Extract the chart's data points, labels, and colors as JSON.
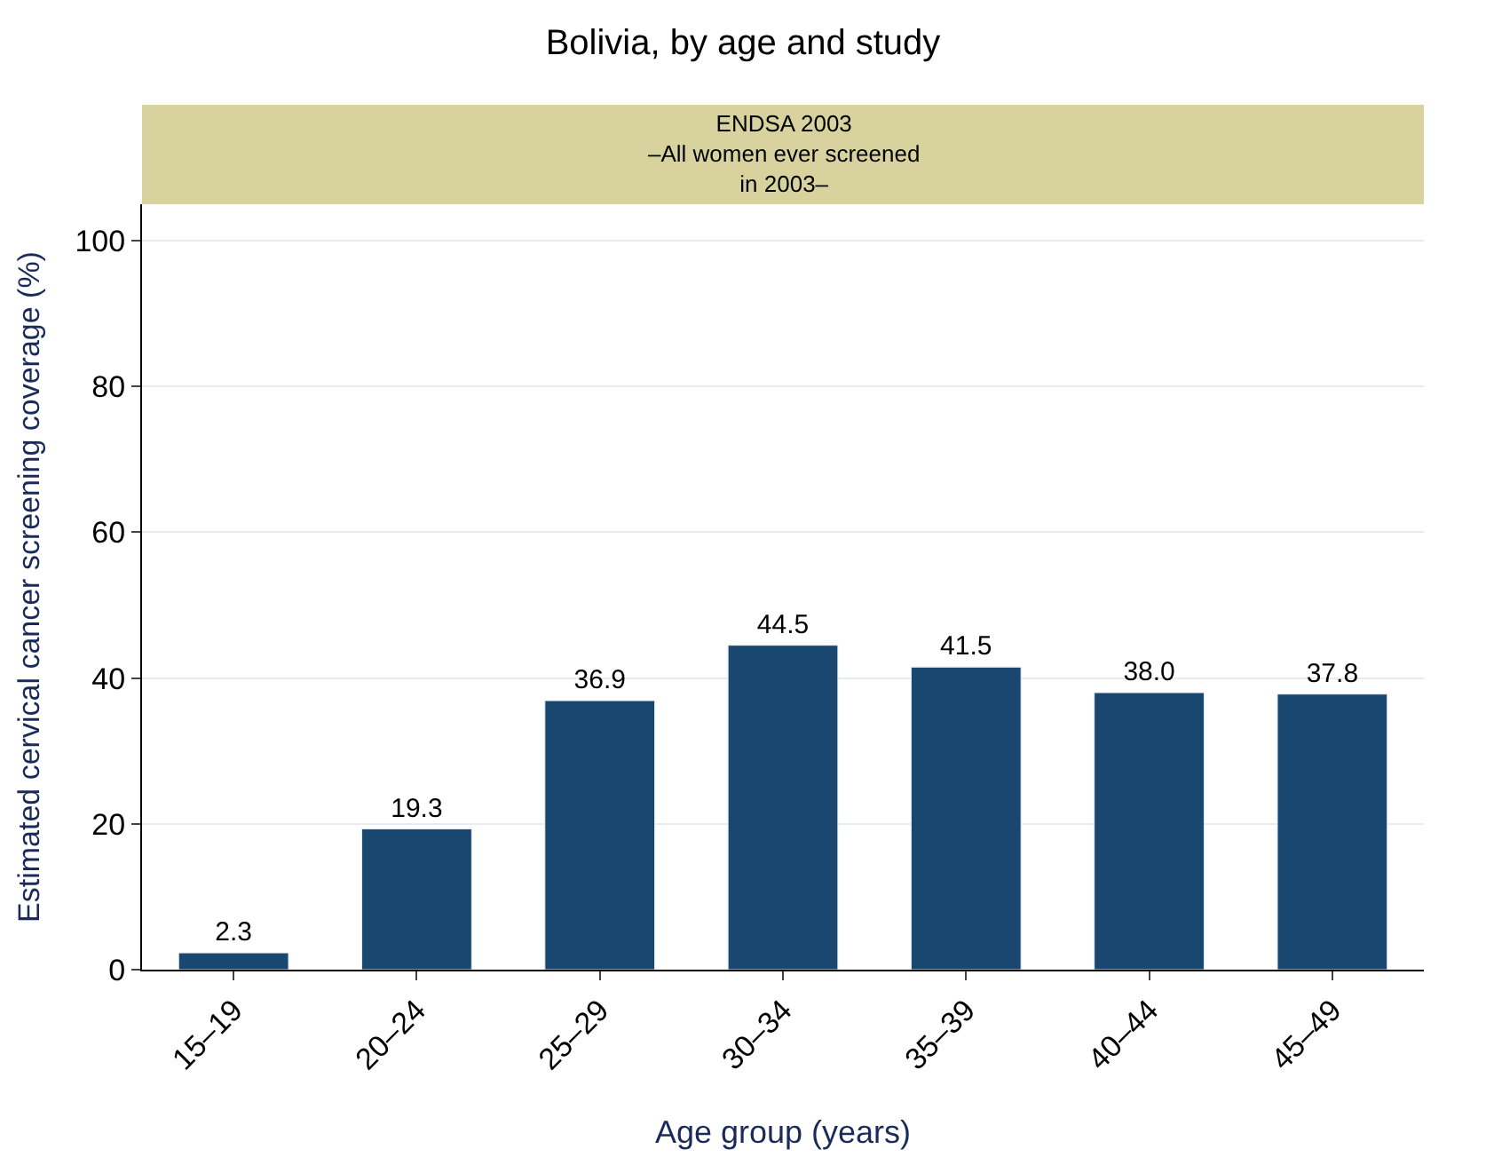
{
  "chart_data": {
    "type": "bar",
    "title": "Bolivia, by age and study",
    "subtitle": "ENDSA 2003\n–All women ever screened\nin 2003–",
    "xlabel": "Age group (years)",
    "ylabel": "Estimated cervical cancer screening coverage (%)",
    "categories": [
      "15–19",
      "20–24",
      "25–29",
      "30–34",
      "35–39",
      "40–44",
      "45–49"
    ],
    "values": [
      2.3,
      19.3,
      36.9,
      44.5,
      41.5,
      38.0,
      37.8
    ],
    "value_labels": [
      "2.3",
      "19.3",
      "36.9",
      "44.5",
      "41.5",
      "38.0",
      "37.8"
    ],
    "color": "#1a476f",
    "ylim": [
      0,
      105
    ],
    "yticks": [
      0,
      20,
      40,
      60,
      80,
      100
    ],
    "grid": "y",
    "legend": false
  }
}
